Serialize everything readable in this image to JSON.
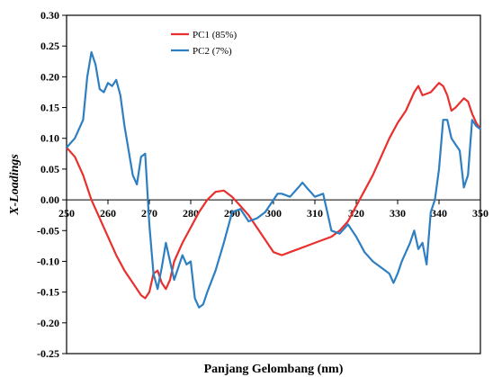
{
  "chart_data": {
    "type": "line",
    "title": "",
    "xlabel": "Panjang Gelombang (nm)",
    "ylabel": "X-Loadings",
    "xlim": [
      250,
      350
    ],
    "ylim": [
      -0.25,
      0.3
    ],
    "xticks": [
      250,
      260,
      270,
      280,
      290,
      300,
      310,
      320,
      330,
      340,
      350
    ],
    "xtick_labels": [
      "250",
      "260",
      "270",
      "280",
      "290",
      "300",
      "310",
      "320",
      "330",
      "340",
      "350"
    ],
    "yticks": [
      -0.25,
      -0.2,
      -0.15,
      -0.1,
      -0.05,
      0.0,
      0.05,
      0.1,
      0.15,
      0.2,
      0.25,
      0.3
    ],
    "ytick_labels": [
      "-0.25",
      "-0.20",
      "-0.15",
      "-0.10",
      "-0.05",
      "0.00",
      "0.05",
      "0.10",
      "0.15",
      "0.20",
      "0.25",
      "0.30"
    ],
    "grid": false,
    "legend_position": "top-center",
    "series": [
      {
        "name": "PC1 (85%)",
        "color": "#e8302e",
        "points": [
          [
            250,
            0.085
          ],
          [
            252,
            0.07
          ],
          [
            254,
            0.04
          ],
          [
            256,
            0.0
          ],
          [
            258,
            -0.03
          ],
          [
            260,
            -0.06
          ],
          [
            262,
            -0.09
          ],
          [
            264,
            -0.115
          ],
          [
            266,
            -0.135
          ],
          [
            268,
            -0.155
          ],
          [
            269,
            -0.16
          ],
          [
            270,
            -0.15
          ],
          [
            271,
            -0.12
          ],
          [
            272,
            -0.115
          ],
          [
            273,
            -0.135
          ],
          [
            274,
            -0.145
          ],
          [
            275,
            -0.13
          ],
          [
            276,
            -0.1
          ],
          [
            278,
            -0.07
          ],
          [
            280,
            -0.045
          ],
          [
            282,
            -0.02
          ],
          [
            284,
            0.0
          ],
          [
            286,
            0.013
          ],
          [
            288,
            0.015
          ],
          [
            290,
            0.005
          ],
          [
            292,
            -0.01
          ],
          [
            294,
            -0.025
          ],
          [
            296,
            -0.045
          ],
          [
            298,
            -0.065
          ],
          [
            300,
            -0.085
          ],
          [
            302,
            -0.09
          ],
          [
            304,
            -0.085
          ],
          [
            306,
            -0.08
          ],
          [
            308,
            -0.075
          ],
          [
            310,
            -0.07
          ],
          [
            312,
            -0.065
          ],
          [
            314,
            -0.06
          ],
          [
            316,
            -0.05
          ],
          [
            318,
            -0.035
          ],
          [
            320,
            -0.01
          ],
          [
            322,
            0.015
          ],
          [
            324,
            0.04
          ],
          [
            326,
            0.07
          ],
          [
            328,
            0.1
          ],
          [
            330,
            0.125
          ],
          [
            332,
            0.145
          ],
          [
            334,
            0.175
          ],
          [
            335,
            0.185
          ],
          [
            336,
            0.17
          ],
          [
            338,
            0.175
          ],
          [
            340,
            0.19
          ],
          [
            341,
            0.185
          ],
          [
            342,
            0.17
          ],
          [
            343,
            0.145
          ],
          [
            344,
            0.15
          ],
          [
            346,
            0.165
          ],
          [
            347,
            0.16
          ],
          [
            348,
            0.14
          ],
          [
            349,
            0.125
          ],
          [
            350,
            0.115
          ]
        ]
      },
      {
        "name": "PC2 (7%)",
        "color": "#2e7fc1",
        "points": [
          [
            250,
            0.085
          ],
          [
            252,
            0.1
          ],
          [
            254,
            0.13
          ],
          [
            255,
            0.2
          ],
          [
            256,
            0.24
          ],
          [
            257,
            0.22
          ],
          [
            258,
            0.18
          ],
          [
            259,
            0.175
          ],
          [
            260,
            0.19
          ],
          [
            261,
            0.185
          ],
          [
            262,
            0.195
          ],
          [
            263,
            0.17
          ],
          [
            264,
            0.12
          ],
          [
            265,
            0.08
          ],
          [
            266,
            0.04
          ],
          [
            267,
            0.025
          ],
          [
            268,
            0.07
          ],
          [
            269,
            0.075
          ],
          [
            270,
            -0.04
          ],
          [
            271,
            -0.12
          ],
          [
            272,
            -0.145
          ],
          [
            273,
            -0.11
          ],
          [
            274,
            -0.07
          ],
          [
            275,
            -0.1
          ],
          [
            276,
            -0.13
          ],
          [
            277,
            -0.11
          ],
          [
            278,
            -0.09
          ],
          [
            279,
            -0.105
          ],
          [
            280,
            -0.1
          ],
          [
            281,
            -0.16
          ],
          [
            282,
            -0.175
          ],
          [
            283,
            -0.17
          ],
          [
            284,
            -0.15
          ],
          [
            286,
            -0.115
          ],
          [
            288,
            -0.07
          ],
          [
            290,
            -0.02
          ],
          [
            292,
            -0.015
          ],
          [
            294,
            -0.035
          ],
          [
            296,
            -0.03
          ],
          [
            298,
            -0.02
          ],
          [
            300,
            0.0
          ],
          [
            301,
            0.01
          ],
          [
            302,
            0.01
          ],
          [
            304,
            0.005
          ],
          [
            306,
            0.02
          ],
          [
            307,
            0.028
          ],
          [
            308,
            0.02
          ],
          [
            310,
            0.005
          ],
          [
            312,
            0.01
          ],
          [
            313,
            -0.02
          ],
          [
            314,
            -0.05
          ],
          [
            316,
            -0.055
          ],
          [
            318,
            -0.04
          ],
          [
            320,
            -0.06
          ],
          [
            322,
            -0.085
          ],
          [
            324,
            -0.1
          ],
          [
            326,
            -0.11
          ],
          [
            328,
            -0.12
          ],
          [
            329,
            -0.135
          ],
          [
            330,
            -0.12
          ],
          [
            331,
            -0.1
          ],
          [
            332,
            -0.085
          ],
          [
            333,
            -0.07
          ],
          [
            334,
            -0.05
          ],
          [
            335,
            -0.08
          ],
          [
            336,
            -0.07
          ],
          [
            337,
            -0.105
          ],
          [
            338,
            -0.02
          ],
          [
            339,
            0.0
          ],
          [
            340,
            0.05
          ],
          [
            341,
            0.13
          ],
          [
            342,
            0.13
          ],
          [
            343,
            0.1
          ],
          [
            344,
            0.09
          ],
          [
            345,
            0.08
          ],
          [
            346,
            0.02
          ],
          [
            347,
            0.04
          ],
          [
            348,
            0.13
          ],
          [
            349,
            0.12
          ],
          [
            350,
            0.115
          ]
        ]
      }
    ]
  }
}
